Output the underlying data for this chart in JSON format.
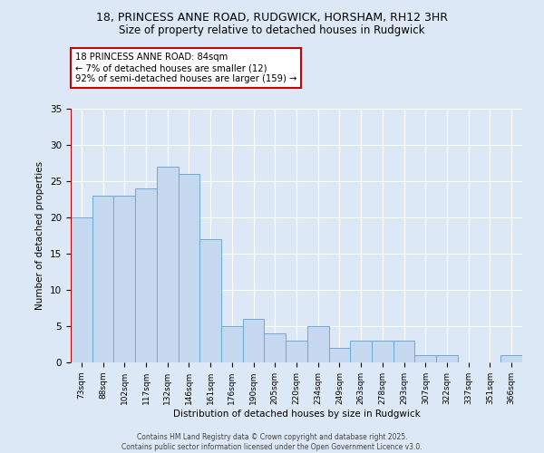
{
  "title1": "18, PRINCESS ANNE ROAD, RUDGWICK, HORSHAM, RH12 3HR",
  "title2": "Size of property relative to detached houses in Rudgwick",
  "xlabel": "Distribution of detached houses by size in Rudgwick",
  "ylabel": "Number of detached properties",
  "bins": [
    "73sqm",
    "88sqm",
    "102sqm",
    "117sqm",
    "132sqm",
    "146sqm",
    "161sqm",
    "176sqm",
    "190sqm",
    "205sqm",
    "220sqm",
    "234sqm",
    "249sqm",
    "263sqm",
    "278sqm",
    "293sqm",
    "307sqm",
    "322sqm",
    "337sqm",
    "351sqm",
    "366sqm"
  ],
  "values": [
    20,
    23,
    23,
    24,
    27,
    26,
    17,
    5,
    6,
    4,
    3,
    5,
    2,
    3,
    3,
    3,
    1,
    1,
    0,
    0,
    1
  ],
  "bar_color": "#c5d8ef",
  "bar_edge_color": "#6aaad4",
  "annotation_line1": "18 PRINCESS ANNE ROAD: 84sqm",
  "annotation_line2": "← 7% of detached houses are smaller (12)",
  "annotation_line3": "92% of semi-detached houses are larger (159) →",
  "annotation_box_color": "white",
  "annotation_box_edge_color": "#cc0000",
  "vline_color": "#cc0000",
  "vline_x": -0.5,
  "ylim": [
    0,
    35
  ],
  "yticks": [
    0,
    5,
    10,
    15,
    20,
    25,
    30,
    35
  ],
  "bg_color": "#dce8f5",
  "plot_bg_color": "#dce8f5",
  "grid_color": "white",
  "footer": "Contains HM Land Registry data © Crown copyright and database right 2025.\nContains public sector information licensed under the Open Government Licence v3.0."
}
